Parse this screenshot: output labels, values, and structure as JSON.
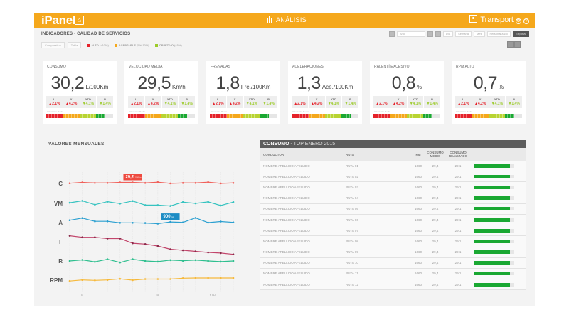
{
  "topbar": {
    "brand": "iPanel",
    "home_icon": "home-icon",
    "section_icon": "bar-chart-icon",
    "section": "ANÁLISIS",
    "user_icon": "user-icon",
    "user": "Transport",
    "settings_icon": "settings-icon",
    "help_icon": "help-icon"
  },
  "page_title": "INDICADORES - CALIDAD DE SERVICIOS",
  "filters": {
    "chips": [
      "Comparativa",
      "Tabla"
    ],
    "legend": [
      {
        "label": "ALTO",
        "range": "(>10%)",
        "color": "#e5222a"
      },
      {
        "label": "ACEPTABLE",
        "range": "(5%-10%)",
        "color": "#f5a81c"
      },
      {
        "label": "OBJETIVO",
        "range": "(<5%)",
        "color": "#9ccb29"
      }
    ]
  },
  "controls": {
    "period_input": "Año",
    "buttons": [
      "Día",
      "Semana",
      "Mes",
      "Personalizado"
    ],
    "export": "Exportar"
  },
  "kpi_columns": [
    "L",
    "Y",
    "YTD",
    "B"
  ],
  "kpi_sub_label": "Valoración Media",
  "kpis": [
    {
      "title": "CONSUMO",
      "value": "30,2",
      "unit": "L/100Km",
      "deltas": [
        "▲2,1%",
        "▲4,2%",
        "▼4,1%",
        "▼1,4%"
      ],
      "level": 0.88
    },
    {
      "title": "VELOCIDAD MEDIA",
      "value": "29,5",
      "unit": "Km/h",
      "deltas": [
        "▲2,1%",
        "▲4,2%",
        "▼4,1%",
        "▼1,4%"
      ],
      "level": 0.88
    },
    {
      "title": "FRENADAS",
      "value": "1,8",
      "unit": "Fre./100Km",
      "deltas": [
        "▲2,1%",
        "▲4,2%",
        "▼4,1%",
        "▼1,4%"
      ],
      "level": 0.88
    },
    {
      "title": "ACELERACIONES",
      "value": "1,3",
      "unit": "Ace./100Km",
      "deltas": [
        "▲2,1%",
        "▲4,2%",
        "▼4,1%",
        "▼1,4%"
      ],
      "level": 0.88
    },
    {
      "title": "RALENTÍ EXCESIVO",
      "value": "0,8",
      "unit": "%",
      "deltas": [
        "▲2,1%",
        "▲4,2%",
        "▼4,1%",
        "▼1,4%"
      ],
      "level": 0.88
    },
    {
      "title": "RPM ALTO",
      "value": "0,7",
      "unit": "%",
      "deltas": [
        "▲2,1%",
        "▲4,2%",
        "▼4,1%",
        "▼1,4%"
      ],
      "level": 0.88
    }
  ],
  "chart_data": {
    "type": "line",
    "title": "VALORES MENSUALES",
    "x": [
      1,
      2,
      3,
      4,
      5,
      6,
      7,
      8,
      9,
      10,
      11,
      12,
      13,
      14
    ],
    "x_tick_labels": [
      {
        "at": 2,
        "label": "B"
      },
      {
        "at": 8,
        "label": "B"
      },
      {
        "at": 12,
        "label": "YTD"
      }
    ],
    "series": [
      {
        "name": "C",
        "color": "#f0605a",
        "values": [
          0.5,
          2.5,
          1.2,
          1.2,
          2.5,
          2.5,
          1.2,
          3.0,
          0.2,
          1.2,
          1.2,
          3.0,
          0.2,
          1.2
        ],
        "annotation": {
          "index": 5,
          "label": "29,2",
          "unit": "L/100Km"
        }
      },
      {
        "name": "VM",
        "color": "#36c3c0",
        "values": [
          1.5,
          6.0,
          -3.0,
          4.0,
          -0.5,
          5.5,
          -4.0,
          -4.0,
          -6.0,
          3.0,
          0.0,
          3.5,
          -5.0,
          3.0
        ]
      },
      {
        "name": "A",
        "color": "#2a9fd0",
        "values": [
          5.5,
          10.5,
          3.0,
          3.0,
          -0.5,
          -0.5,
          -1.0,
          -2.5,
          1.5,
          0.5,
          11.0,
          0.0,
          2.5,
          0.5
        ],
        "annotation": {
          "index": 8,
          "label": "900",
          "unit": "km"
        }
      },
      {
        "name": "F",
        "color": "#c2456b",
        "values": [
          14.0,
          10.5,
          10.5,
          7.5,
          7.5,
          -3.5,
          -5.5,
          -10.0,
          -17.5,
          -20.0,
          -22.5,
          -25.0,
          -26.5,
          -29.5
        ]
      },
      {
        "name": "R",
        "color": "#2fbf8f",
        "values": [
          0.0,
          2.5,
          -2.0,
          4.0,
          -3.5,
          4.0,
          0.0,
          -1.5,
          2.0,
          0.5,
          2.0,
          0.0,
          -1.5,
          0.0
        ]
      },
      {
        "name": "RPM",
        "color": "#f6b93b",
        "values": [
          -2.0,
          0.5,
          -0.5,
          0.5,
          3.0,
          0.0,
          2.5,
          2.5,
          2.5,
          4.5,
          5.0,
          5.0,
          5.0,
          5.0
        ]
      }
    ],
    "xlabel": "",
    "ylabel": "",
    "grid": "vertical"
  },
  "table": {
    "title": "CONSUMO",
    "subtitle": " - TOP ENERO 2015",
    "columns": [
      "CONDUCTOR",
      "RUTA",
      "KM",
      "CONSUMO MEDIO",
      "CONSUMO REALIZADO",
      ""
    ],
    "rows": [
      {
        "conductor": "NOMBRE APELLIDO APELLIDO",
        "ruta": "RUTA 01",
        "km": "1660",
        "medio": "29,4",
        "realizado": "29,1",
        "progress": 0.9
      },
      {
        "conductor": "NOMBRE APELLIDO APELLIDO",
        "ruta": "RUTA 02",
        "km": "1660",
        "medio": "29,4",
        "realizado": "29,1",
        "progress": 0.9
      },
      {
        "conductor": "NOMBRE APELLIDO APELLIDO",
        "ruta": "RUTA 03",
        "km": "1660",
        "medio": "29,4",
        "realizado": "29,1",
        "progress": 0.9
      },
      {
        "conductor": "NOMBRE APELLIDO APELLIDO",
        "ruta": "RUTA 04",
        "km": "1660",
        "medio": "29,4",
        "realizado": "29,1",
        "progress": 0.9
      },
      {
        "conductor": "NOMBRE APELLIDO APELLIDO",
        "ruta": "RUTA 05",
        "km": "1660",
        "medio": "29,4",
        "realizado": "29,1",
        "progress": 0.9
      },
      {
        "conductor": "NOMBRE APELLIDO APELLIDO",
        "ruta": "RUTA 06",
        "km": "1660",
        "medio": "29,4",
        "realizado": "29,1",
        "progress": 0.9
      },
      {
        "conductor": "NOMBRE APELLIDO APELLIDO",
        "ruta": "RUTA 07",
        "km": "1660",
        "medio": "29,4",
        "realizado": "29,1",
        "progress": 0.9
      },
      {
        "conductor": "NOMBRE APELLIDO APELLIDO",
        "ruta": "RUTA 08",
        "km": "1660",
        "medio": "29,4",
        "realizado": "29,1",
        "progress": 0.9
      },
      {
        "conductor": "NOMBRE APELLIDO APELLIDO",
        "ruta": "RUTA 09",
        "km": "1660",
        "medio": "29,4",
        "realizado": "29,1",
        "progress": 0.9
      },
      {
        "conductor": "NOMBRE APELLIDO APELLIDO",
        "ruta": "RUTA 10",
        "km": "1660",
        "medio": "29,4",
        "realizado": "29,1",
        "progress": 0.9
      },
      {
        "conductor": "NOMBRE APELLIDO APELLIDO",
        "ruta": "RUTA 11",
        "km": "1660",
        "medio": "29,4",
        "realizado": "29,1",
        "progress": 0.9
      },
      {
        "conductor": "NOMBRE APELLIDO APELLIDO",
        "ruta": "RUTA 12",
        "km": "1660",
        "medio": "29,4",
        "realizado": "29,1",
        "progress": 0.9
      }
    ]
  },
  "colors": {
    "brand": "#f5a81c",
    "alert": "#e5222a",
    "ok": "#9ccb29",
    "progress": "#1aa832",
    "table_header": "#5c5c5c"
  }
}
